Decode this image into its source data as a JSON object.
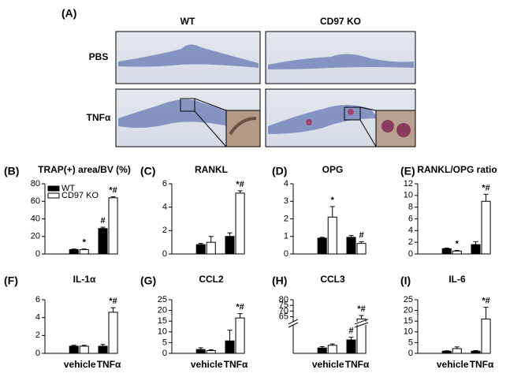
{
  "images": {
    "label": "(A)",
    "columns": [
      "WT",
      "CD97 KO"
    ],
    "rows": [
      "PBS",
      "TNFα"
    ]
  },
  "chart_data": [
    {
      "type": "bar",
      "label": "(B)",
      "title": "TRAP(+) area/BV (%)",
      "categories": [
        null,
        null
      ],
      "ylim": [
        0,
        80
      ],
      "yticks": [
        0,
        20,
        40,
        60,
        80
      ],
      "legend": "upper left",
      "series": [
        {
          "name": "WT",
          "color": "#000000",
          "values": [
            5,
            29
          ],
          "errors": [
            0.6,
            1.5
          ],
          "annotations": [
            null,
            "#"
          ]
        },
        {
          "name": "CD97 KO",
          "color": "#ffffff",
          "values": [
            5,
            64
          ],
          "errors": [
            0.6,
            1.2
          ],
          "annotations": [
            "*",
            "*#"
          ]
        }
      ]
    },
    {
      "type": "bar",
      "label": "(C)",
      "title": "RANKL",
      "categories": [
        null,
        null
      ],
      "ylim": [
        0,
        6
      ],
      "yticks": [
        0,
        2,
        4,
        6
      ],
      "series": [
        {
          "color": "#000000",
          "values": [
            0.8,
            1.5
          ],
          "errors": [
            0.1,
            0.3
          ],
          "annotations": [
            null,
            null
          ]
        },
        {
          "color": "#ffffff",
          "values": [
            1.0,
            5.2
          ],
          "errors": [
            0.5,
            0.2
          ],
          "annotations": [
            null,
            "*#"
          ]
        }
      ]
    },
    {
      "type": "bar",
      "label": "(D)",
      "title": "OPG",
      "categories": [
        null,
        null
      ],
      "ylim": [
        0,
        4
      ],
      "yticks": [
        0,
        1,
        2,
        3,
        4
      ],
      "series": [
        {
          "color": "#000000",
          "values": [
            0.9,
            0.95
          ],
          "errors": [
            0.05,
            0.1
          ],
          "annotations": [
            null,
            null
          ]
        },
        {
          "color": "#ffffff",
          "values": [
            2.1,
            0.6
          ],
          "errors": [
            0.6,
            0.1
          ],
          "annotations": [
            "*",
            "#"
          ]
        }
      ]
    },
    {
      "type": "bar",
      "label": "(E)",
      "title": "RANKL/OPG ratio",
      "categories": [
        null,
        null
      ],
      "ylim": [
        0,
        12
      ],
      "yticks": [
        0,
        2,
        4,
        6,
        8,
        10,
        12
      ],
      "series": [
        {
          "color": "#000000",
          "values": [
            0.9,
            1.6
          ],
          "errors": [
            0.1,
            0.5
          ],
          "annotations": [
            null,
            null
          ]
        },
        {
          "color": "#ffffff",
          "values": [
            0.5,
            9
          ],
          "errors": [
            0.1,
            1.2
          ],
          "annotations": [
            "*",
            "*#"
          ]
        }
      ]
    },
    {
      "type": "bar",
      "label": "(F)",
      "title": "IL-1α",
      "categories": [
        "vehicle",
        "TNFα"
      ],
      "ylim": [
        0,
        6
      ],
      "yticks": [
        0,
        2,
        4,
        6
      ],
      "series": [
        {
          "color": "#000000",
          "values": [
            0.8,
            0.8
          ],
          "errors": [
            0.1,
            0.2
          ],
          "annotations": [
            null,
            null
          ]
        },
        {
          "color": "#ffffff",
          "values": [
            0.8,
            4.6
          ],
          "errors": [
            0.1,
            0.5
          ],
          "annotations": [
            null,
            "*#"
          ]
        }
      ]
    },
    {
      "type": "bar",
      "label": "(G)",
      "title": "CCL2",
      "categories": [
        "vehicle",
        "TNFα"
      ],
      "ylim": [
        0,
        25
      ],
      "yticks": [
        0,
        5,
        10,
        15,
        20,
        25
      ],
      "series": [
        {
          "color": "#000000",
          "values": [
            1.8,
            5.8
          ],
          "errors": [
            0.8,
            5
          ],
          "annotations": [
            null,
            null
          ]
        },
        {
          "color": "#ffffff",
          "values": [
            1.3,
            16.5
          ],
          "errors": [
            0.4,
            2
          ],
          "annotations": [
            null,
            "*#"
          ]
        }
      ]
    },
    {
      "type": "bar",
      "label": "(H)",
      "title": "CCL3",
      "categories": [
        "vehicle",
        "TNFα"
      ],
      "ylim": [
        0,
        80
      ],
      "axis_break": [
        1,
        62
      ],
      "yticks": [
        65,
        70,
        75,
        80
      ],
      "series": [
        {
          "color": "#000000",
          "values": [
            0.2,
            0.5
          ],
          "errors": [
            0.05,
            0.1
          ],
          "annotations": [
            null,
            "#"
          ]
        },
        {
          "color": "#ffffff",
          "values": [
            0.3,
            63
          ],
          "errors": [
            0.05,
            3
          ],
          "annotations": [
            null,
            "*#"
          ]
        }
      ]
    },
    {
      "type": "bar",
      "label": "(I)",
      "title": "IL-6",
      "categories": [
        "vehicle",
        "TNFα"
      ],
      "ylim": [
        0,
        25
      ],
      "yticks": [
        0,
        5,
        10,
        15,
        20,
        25
      ],
      "series": [
        {
          "color": "#000000",
          "values": [
            1,
            1
          ],
          "errors": [
            0.2,
            0.3
          ],
          "annotations": [
            null,
            null
          ]
        },
        {
          "color": "#ffffff",
          "values": [
            2.2,
            16
          ],
          "errors": [
            0.8,
            5.5
          ],
          "annotations": [
            null,
            "*#"
          ]
        }
      ]
    }
  ]
}
